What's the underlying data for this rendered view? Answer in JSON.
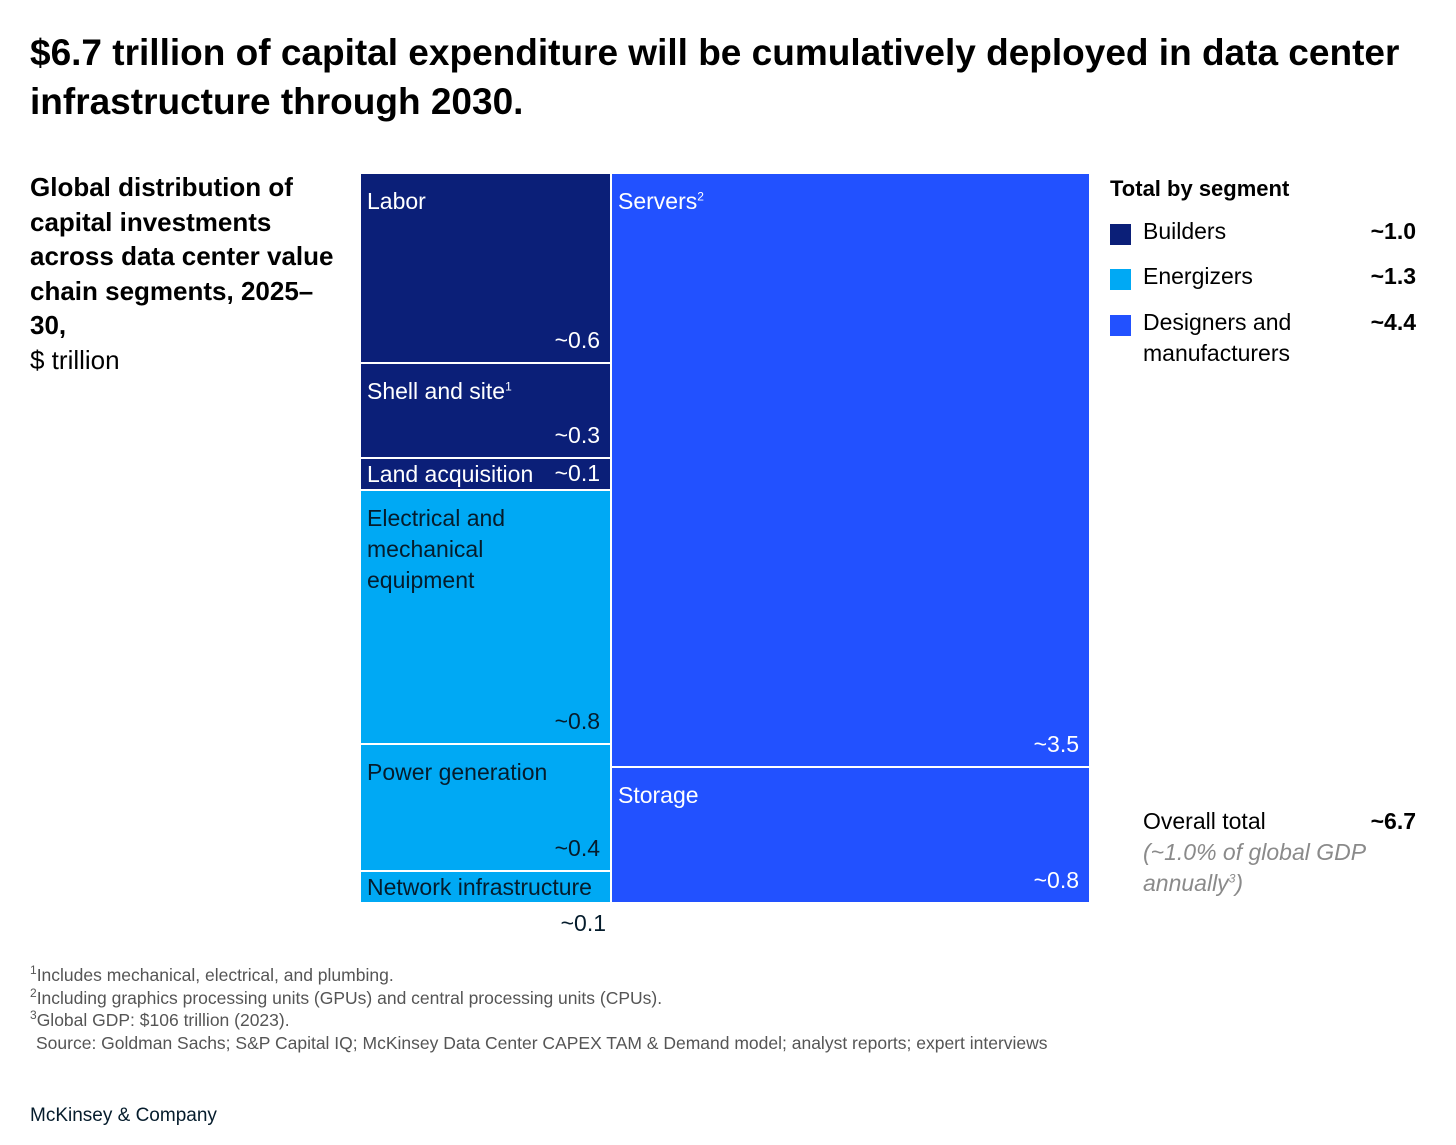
{
  "title": "$6.7 trillion of capital expenditure will be cumulatively deployed in data center infrastructure through 2030.",
  "subtitle": {
    "main": "Global distribution of capital investments across data center value chain segments, 2025–30,",
    "unit": "$ trillion"
  },
  "chart_data": {
    "type": "treemap",
    "title": "Global distribution of capital investments across data center value chain segments, 2025–30",
    "unit": "$ trillion",
    "columns": [
      {
        "group_values": [
          1.0,
          1.3
        ],
        "tiles": [
          {
            "label": "Labor",
            "sup": "",
            "value": 0.6,
            "value_label": "~0.6",
            "segment": "Builders"
          },
          {
            "label": "Shell and site",
            "sup": "1",
            "value": 0.3,
            "value_label": "~0.3",
            "segment": "Builders"
          },
          {
            "label": "Land acquisition",
            "sup": "",
            "value": 0.1,
            "value_label": "~0.1",
            "segment": "Builders"
          },
          {
            "label": "Electrical and\nmechanical\nequipment",
            "sup": "",
            "value": 0.8,
            "value_label": "~0.8",
            "segment": "Energizers"
          },
          {
            "label": "Power generation",
            "sup": "",
            "value": 0.4,
            "value_label": "~0.4",
            "segment": "Energizers"
          },
          {
            "label": "Network infrastructure",
            "sup": "",
            "value": 0.1,
            "value_label": "~0.1",
            "segment": "Energizers",
            "value_outside": true
          }
        ]
      },
      {
        "group_values": [
          4.4
        ],
        "tiles": [
          {
            "label": "Servers",
            "sup": "2",
            "value": 3.5,
            "value_label": "~3.5",
            "segment": "Designers and manufacturers"
          },
          {
            "label": "Storage",
            "sup": "",
            "value": 0.8,
            "value_label": "~0.8",
            "segment": "Designers and manufacturers"
          }
        ]
      }
    ],
    "segment_colors": {
      "Builders": "#0b1f78",
      "Energizers": "#00a9f4",
      "Designers and manufacturers": "#2251ff"
    }
  },
  "legend": {
    "title": "Total by segment",
    "items": [
      {
        "label": "Builders",
        "value": "~1.0",
        "color": "#0b1f78"
      },
      {
        "label": "Energizers",
        "value": "~1.3",
        "color": "#00a9f4"
      },
      {
        "label": "Designers and manufacturers",
        "value": "~4.4",
        "color": "#2251ff"
      }
    ]
  },
  "overall": {
    "label": "Overall total",
    "value": "~6.7",
    "note": "(~1.0% of global GDP annually",
    "note_sup": "3",
    "note_close": ")"
  },
  "footnotes": [
    {
      "sup": "1",
      "text": "Includes mechanical, electrical, and plumbing."
    },
    {
      "sup": "2",
      "text": "Including graphics processing units (GPUs) and central processing units (CPUs)."
    },
    {
      "sup": "3",
      "text": "Global GDP: $106 trillion (2023)."
    }
  ],
  "source": "Source: Goldman Sachs; S&P Capital IQ; McKinsey Data Center CAPEX TAM & Demand model; analyst reports; expert interviews",
  "brand": "McKinsey & Company"
}
